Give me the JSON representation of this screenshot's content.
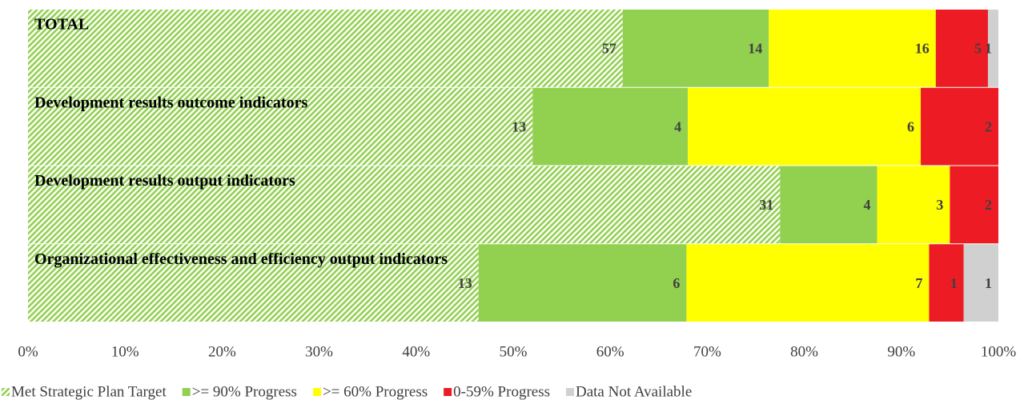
{
  "chart_data": {
    "type": "stacked-percent-barh",
    "categories": [
      "TOTAL",
      "Development results outcome indicators",
      "Development results output indicators",
      "Organizational effectiveness and efficiency output indicators"
    ],
    "series": [
      {
        "name": "Met Strategic Plan Target",
        "color": "#92d050",
        "pattern": "hatch",
        "values": [
          57,
          13,
          31,
          13
        ]
      },
      {
        "name": ">= 90% Progress",
        "color": "#92d050",
        "values": [
          14,
          4,
          4,
          6
        ]
      },
      {
        "name": ">= 60% Progress",
        "color": "#ffff00",
        "values": [
          16,
          6,
          3,
          7
        ]
      },
      {
        "name": "0-59% Progress",
        "color": "#ed1c24",
        "values": [
          5,
          2,
          2,
          1
        ]
      },
      {
        "name": "Data Not Available",
        "color": "#d0d0d0",
        "values": [
          1,
          null,
          null,
          1
        ]
      }
    ],
    "xlim": [
      0,
      100
    ],
    "xticks": [
      {
        "value": 0,
        "label": "0%"
      },
      {
        "value": 10,
        "label": "10%"
      },
      {
        "value": 20,
        "label": "20%"
      },
      {
        "value": 30,
        "label": "30%"
      },
      {
        "value": 40,
        "label": "40%"
      },
      {
        "value": 50,
        "label": "50%"
      },
      {
        "value": 60,
        "label": "60%"
      },
      {
        "value": 70,
        "label": "70%"
      },
      {
        "value": 80,
        "label": "80%"
      },
      {
        "value": 90,
        "label": "90%"
      },
      {
        "value": 100,
        "label": "100%"
      }
    ],
    "legend": "bottom"
  }
}
